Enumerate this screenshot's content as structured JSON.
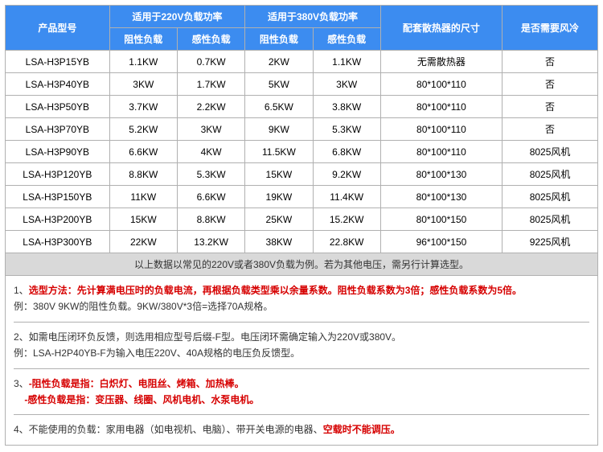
{
  "header": {
    "model": "产品型号",
    "group220": "适用于220V负载功率",
    "group380": "适用于380V负载功率",
    "heatsink": "配套散热器的尺寸",
    "fan": "是否需要风冷",
    "resistive": "阻性负载",
    "inductive": "感性负载"
  },
  "rows": [
    {
      "model": "LSA-H3P15YB",
      "r220": "1.1KW",
      "i220": "0.7KW",
      "r380": "2KW",
      "i380": "1.1KW",
      "size": "无需散热器",
      "fan": "否"
    },
    {
      "model": "LSA-H3P40YB",
      "r220": "3KW",
      "i220": "1.7KW",
      "r380": "5KW",
      "i380": "3KW",
      "size": "80*100*110",
      "fan": "否"
    },
    {
      "model": "LSA-H3P50YB",
      "r220": "3.7KW",
      "i220": "2.2KW",
      "r380": "6.5KW",
      "i380": "3.8KW",
      "size": "80*100*110",
      "fan": "否"
    },
    {
      "model": "LSA-H3P70YB",
      "r220": "5.2KW",
      "i220": "3KW",
      "r380": "9KW",
      "i380": "5.3KW",
      "size": "80*100*110",
      "fan": "否"
    },
    {
      "model": "LSA-H3P90YB",
      "r220": "6.6KW",
      "i220": "4KW",
      "r380": "11.5KW",
      "i380": "6.8KW",
      "size": "80*100*110",
      "fan": "8025风机"
    },
    {
      "model": "LSA-H3P120YB",
      "r220": "8.8KW",
      "i220": "5.3KW",
      "r380": "15KW",
      "i380": "9.2KW",
      "size": "80*100*130",
      "fan": "8025风机"
    },
    {
      "model": "LSA-H3P150YB",
      "r220": "11KW",
      "i220": "6.6KW",
      "r380": "19KW",
      "i380": "11.4KW",
      "size": "80*100*130",
      "fan": "8025风机"
    },
    {
      "model": "LSA-H3P200YB",
      "r220": "15KW",
      "i220": "8.8KW",
      "r380": "25KW",
      "i380": "15.2KW",
      "size": "80*100*150",
      "fan": "8025风机"
    },
    {
      "model": "LSA-H3P300YB",
      "r220": "22KW",
      "i220": "13.2KW",
      "r380": "38KW",
      "i380": "22.8KW",
      "size": "96*100*150",
      "fan": "9225风机"
    }
  ],
  "footnote": "以上数据以常见的220V或者380V负载为例。若为其他电压，需另行计算选型。",
  "notes": {
    "n1a": "1、",
    "n1b": "选型方法：先计算满电压时的负载电流，再根据负载类型乘以余量系数。阻性负载系数为3倍；感性负载系数为5倍。",
    "n1c": "例：380V 9KW的阻性负载。9KW/380V*3倍=选择70A规格。",
    "n2a": "2、如需电压闭环负反馈，则选用相应型号后缀-F型。电压闭环需确定输入为220V或380V。",
    "n2b": "例：LSA-H2P40YB-F为输入电压220V、40A规格的电压负反馈型。",
    "n3a": "3、",
    "n3b": "-阻性负载是指：白炽灯、电阻丝、烤箱、加热棒。",
    "n3c": "-感性负载是指：变压器、线圈、风机电机、水泵电机。",
    "n4a": "4、不能使用的负载：家用电器（如电视机、电脑）、带开关电源的电器、",
    "n4b": "空载时不能调压。"
  }
}
